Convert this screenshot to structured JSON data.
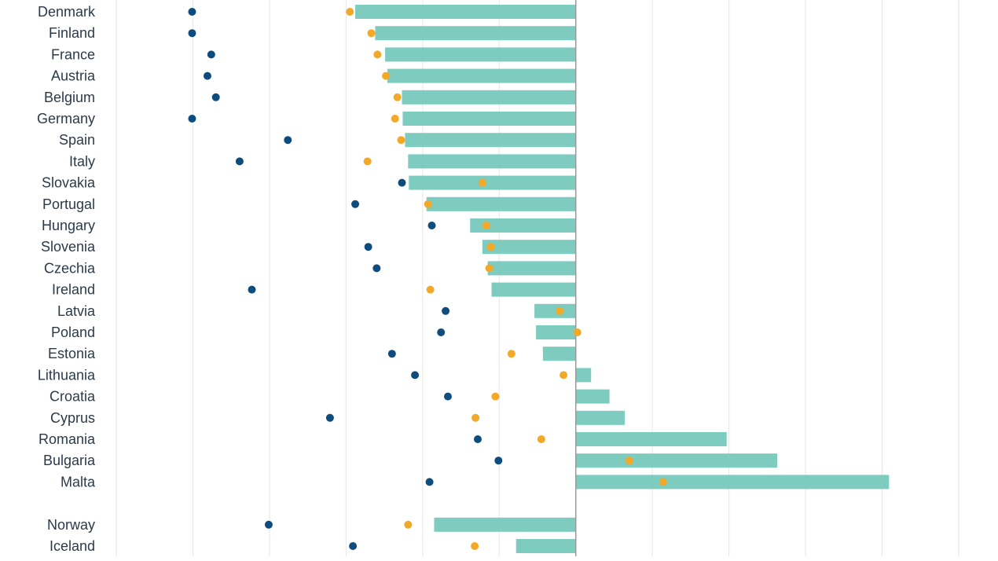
{
  "chart_data": {
    "type": "bar",
    "title": "",
    "xlabel": "",
    "ylabel": "",
    "xlim": [
      -60,
      50
    ],
    "gridline_step": 10,
    "colors": {
      "bar": "#7ecbc0",
      "dot_dark": "#0e4c7e",
      "dot_orange": "#f2a92a",
      "text": "#2a3a4a"
    },
    "series": [
      {
        "name": "bar",
        "mark": "bar"
      },
      {
        "name": "dark dot",
        "mark": "dot"
      },
      {
        "name": "orange dot",
        "mark": "dot"
      }
    ],
    "categories": [
      "Denmark",
      "Finland",
      "France",
      "Austria",
      "Belgium",
      "Germany",
      "Spain",
      "Italy",
      "Slovakia",
      "Portugal",
      "Hungary",
      "Slovenia",
      "Czechia",
      "Ireland",
      "Latvia",
      "Poland",
      "Estonia",
      "Lithuania",
      "Croatia",
      "Cyprus",
      "Romania",
      "Bulgaria",
      "Malta",
      "Norway",
      "Iceland"
    ],
    "groups": [
      23,
      2
    ],
    "bar_values": [
      -28.8,
      -26.2,
      -24.9,
      -24.6,
      -22.7,
      -22.6,
      -22.3,
      -21.9,
      -21.8,
      -19.5,
      -13.8,
      -12.2,
      -11.5,
      -11.0,
      -5.4,
      -5.2,
      -4.3,
      2.0,
      4.4,
      6.4,
      19.7,
      26.3,
      40.9,
      -18.5,
      -7.8
    ],
    "dark_dot_values": [
      -50.1,
      -50.1,
      -47.6,
      -48.1,
      -47.0,
      -50.1,
      -37.6,
      -43.9,
      -22.7,
      -28.8,
      -18.8,
      -27.1,
      -26.0,
      -42.3,
      -17.0,
      -17.6,
      -24.0,
      -21.0,
      -16.7,
      -32.1,
      -12.8,
      -10.1,
      -19.1,
      -40.1,
      -29.1
    ],
    "orange_dot_values": [
      -29.5,
      -26.7,
      -25.9,
      -24.8,
      -23.3,
      -23.6,
      -22.8,
      -27.2,
      -12.2,
      -19.3,
      -11.7,
      -11.1,
      -11.3,
      -19.0,
      -2.1,
      0.2,
      -8.4,
      -1.6,
      -10.5,
      -13.1,
      -4.5,
      7.0,
      11.4,
      -21.9,
      -13.2
    ]
  }
}
